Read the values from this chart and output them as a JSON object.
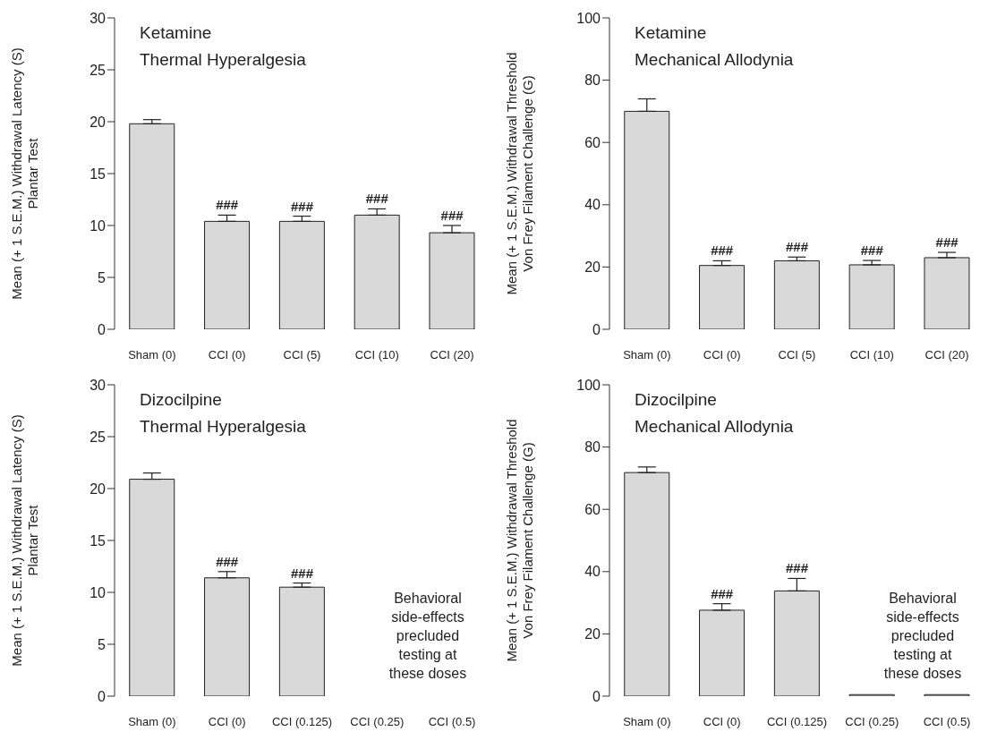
{
  "chart_data": [
    {
      "type": "bar",
      "title": "Ketamine",
      "subtitle": "Thermal Hyperalgesia",
      "ylabel": "Mean (+ 1 S.E.M.) Withdrawal Latency (S)\nPlantar Test",
      "categories": [
        "Sham (0)",
        "CCI (0)",
        "CCI (5)",
        "CCI (10)",
        "CCI (20)"
      ],
      "values": [
        19.8,
        10.4,
        10.4,
        11.0,
        9.3
      ],
      "errors": [
        [
          19.8,
          20.2
        ],
        [
          10.4,
          11.0
        ],
        [
          10.4,
          10.9
        ],
        [
          11.0,
          11.6
        ],
        [
          9.3,
          10.0
        ]
      ],
      "color": "#d9d9d9",
      "ylim": [
        0,
        30
      ],
      "yticks": [
        0,
        5,
        10,
        15,
        20,
        25,
        30
      ],
      "grid": false,
      "legend": false,
      "annotations": [
        {
          "text": "###",
          "x": "CCI (0)",
          "y": 11.0
        },
        {
          "text": "###",
          "x": "CCI (5)",
          "y": 10.9
        },
        {
          "text": "###",
          "x": "CCI (10)",
          "y": 11.6
        },
        {
          "text": "###",
          "x": "CCI (20)",
          "y": 10.0
        }
      ]
    },
    {
      "type": "bar",
      "title": "Ketamine",
      "subtitle": "Mechanical Allodynia",
      "ylabel": "Mean (+ 1 S.E.M.) Withdrawal Threshold\nVon Frey Filament Challenge (G)",
      "categories": [
        "Sham (0)",
        "CCI (0)",
        "CCI (5)",
        "CCI (10)",
        "CCI (20)"
      ],
      "values": [
        70,
        20.5,
        22,
        20.7,
        23
      ],
      "errors": [
        [
          70,
          74
        ],
        [
          20.5,
          22
        ],
        [
          22,
          23.2
        ],
        [
          20.7,
          22.1
        ],
        [
          23,
          24.7
        ]
      ],
      "color": "#d9d9d9",
      "ylim": [
        0,
        100
      ],
      "yticks": [
        0,
        20,
        40,
        60,
        80,
        100
      ],
      "grid": false,
      "legend": false,
      "annotations": [
        {
          "text": "###",
          "x": "CCI (0)",
          "y": 22
        },
        {
          "text": "###",
          "x": "CCI (5)",
          "y": 23.2
        },
        {
          "text": "###",
          "x": "CCI (10)",
          "y": 22.1
        },
        {
          "text": "###",
          "x": "CCI (20)",
          "y": 24.7
        }
      ]
    },
    {
      "type": "bar",
      "title": "Dizocilpine",
      "subtitle": "Thermal Hyperalgesia",
      "ylabel": "Mean (+ 1 S.E.M.) Withdrawal Latency (S)\nPlantar Test",
      "categories": [
        "Sham (0)",
        "CCI (0)",
        "CCI (0.125)",
        "CCI (0.25)",
        "CCI (0.5)"
      ],
      "values": [
        20.9,
        11.4,
        10.5,
        null,
        null
      ],
      "errors": [
        [
          20.9,
          21.5
        ],
        [
          11.4,
          12.0
        ],
        [
          10.5,
          10.9
        ],
        null,
        null
      ],
      "color": "#d9d9d9",
      "ylim": [
        0,
        30
      ],
      "yticks": [
        0,
        5,
        10,
        15,
        20,
        25,
        30
      ],
      "grid": false,
      "legend": false,
      "annotations": [
        {
          "text": "###",
          "x": "CCI (0)",
          "y": 12.0
        },
        {
          "text": "###",
          "x": "CCI (0.125)",
          "y": 10.9
        },
        "Behavioral\nside-effects\nprecluded\ntesting at\nthese doses"
      ]
    },
    {
      "type": "bar",
      "title": "Dizocilpine",
      "subtitle": "Mechanical Allodynia",
      "ylabel": "Mean (+ 1 S.E.M.) Withdrawal Threshold\nVon Frey Filament Challenge (G)",
      "categories": [
        "Sham (0)",
        "CCI (0)",
        "CCI (0.125)",
        "CCI (0.25)",
        "CCI (0.5)"
      ],
      "values": [
        71.8,
        27.6,
        33.8,
        0.5,
        0.5
      ],
      "errors": [
        [
          71.8,
          73.6
        ],
        [
          27.6,
          29.7
        ],
        [
          33.8,
          37.8
        ],
        null,
        null
      ],
      "color": "#d9d9d9",
      "ylim": [
        0,
        100
      ],
      "yticks": [
        0,
        20,
        40,
        60,
        80,
        100
      ],
      "grid": false,
      "legend": false,
      "annotations": [
        {
          "text": "###",
          "x": "CCI (0)",
          "y": 29.7
        },
        {
          "text": "###",
          "x": "CCI (0.125)",
          "y": 37.8
        },
        "Behavioral\nside-effects\nprecluded\ntesting at\nthese doses"
      ]
    }
  ]
}
